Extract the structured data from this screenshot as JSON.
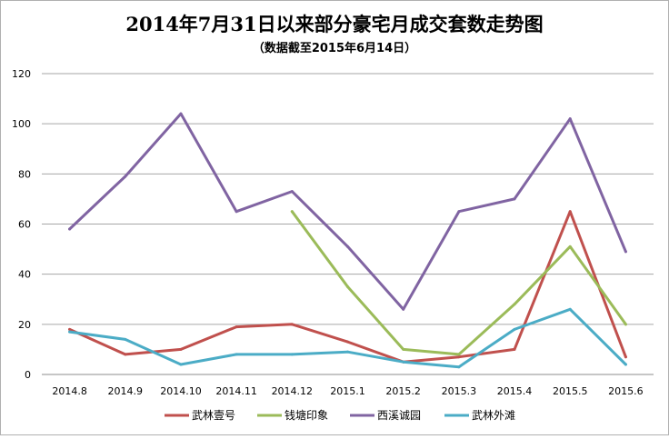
{
  "chart_data": {
    "type": "line",
    "title": "2014年7月31日以来部分豪宅月成交套数走势图",
    "subtitle": "（数据截至2015年6月14日）",
    "categories": [
      "2014.8",
      "2014.9",
      "2014.10",
      "2014.11",
      "2014.12",
      "2015.1",
      "2015.2",
      "2015.3",
      "2015.4",
      "2015.5",
      "2015.6"
    ],
    "ylim": [
      0,
      120
    ],
    "yticks": [
      0,
      20,
      40,
      60,
      80,
      100,
      120
    ],
    "grid": true,
    "legend_position": "bottom",
    "series": [
      {
        "name": "武林壹号",
        "color": "#c0504d",
        "values": [
          18,
          8,
          10,
          19,
          20,
          13,
          5,
          7,
          10,
          65,
          7
        ]
      },
      {
        "name": "钱塘印象",
        "color": "#9bbb59",
        "values": [
          null,
          null,
          null,
          null,
          65,
          35,
          10,
          8,
          28,
          51,
          20
        ]
      },
      {
        "name": "西溪诚园",
        "color": "#8064a2",
        "values": [
          58,
          79,
          104,
          65,
          73,
          51,
          26,
          65,
          70,
          102,
          49
        ]
      },
      {
        "name": "武林外滩",
        "color": "#4bacc6",
        "values": [
          17,
          14,
          4,
          8,
          8,
          9,
          5,
          3,
          18,
          26,
          4
        ]
      }
    ]
  }
}
